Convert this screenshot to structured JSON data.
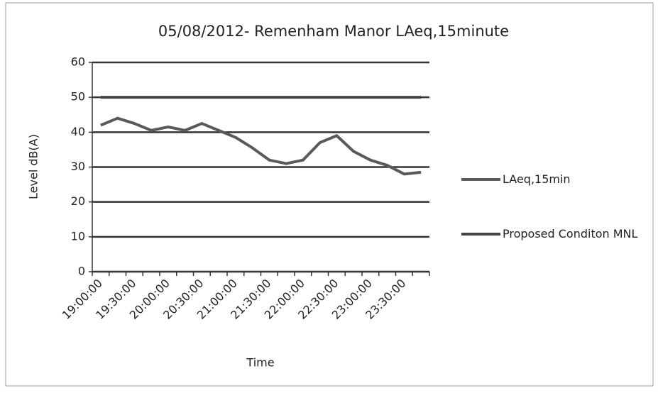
{
  "chart_data": {
    "type": "line",
    "title": "05/08/2012- Remenham Manor LAeq,15minute",
    "x_label": "Time",
    "y_label": "Level dB(A)",
    "categories": [
      "19:00:00",
      null,
      "19:30:00",
      null,
      "20:00:00",
      null,
      "20:30:00",
      null,
      "21:00:00",
      null,
      "21:30:00",
      null,
      "22:00:00",
      null,
      "22:30:00",
      null,
      "23:00:00",
      null,
      "23:30:00",
      null
    ],
    "series": [
      {
        "name": "LAeq,15min",
        "color": "#5a5a5a",
        "values": [
          42,
          44,
          42.5,
          40.5,
          41.5,
          40.5,
          42.5,
          40.5,
          38.5,
          35.5,
          32,
          31,
          32,
          37,
          39,
          34.5,
          32,
          30.5,
          28,
          28.5
        ]
      },
      {
        "name": "Proposed Conditon MNL",
        "color": "#444444",
        "values": [
          50,
          50,
          50,
          50,
          50,
          50,
          50,
          50,
          50,
          50,
          50,
          50,
          50,
          50,
          50,
          50,
          50,
          50,
          50,
          50
        ]
      }
    ],
    "ylim": [
      0,
      60
    ],
    "yticks": [
      0,
      10,
      20,
      30,
      40,
      50,
      60
    ],
    "grid": true,
    "legend": "right"
  }
}
